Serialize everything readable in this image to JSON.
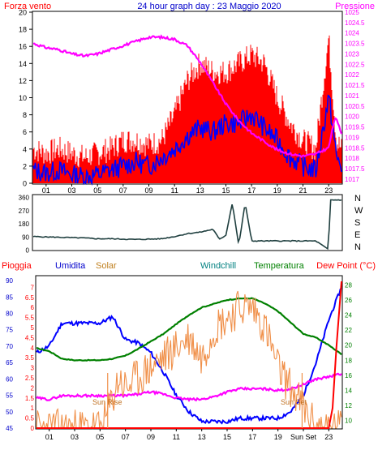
{
  "header": {
    "left_label": "Forza vento",
    "title": "24 hour graph day : 23 Maggio 2020",
    "right_label": "Pressione"
  },
  "colors": {
    "wind_gust": "#ff0000",
    "wind_avg": "#0000ff",
    "pressure": "#ff00ff",
    "direction": "#1f3f3f",
    "axis_blue": "#0000cc",
    "humidity": "#0000ff",
    "solar": "#f0904a",
    "temperature": "#008000",
    "dewpoint": "#ff0000",
    "rain": "#ff0000",
    "windchill": "#008080"
  },
  "chart_data": [
    {
      "type": "line",
      "title": "24 hour graph day : 23 Maggio 2020",
      "x_ticks": [
        "01",
        "03",
        "05",
        "07",
        "09",
        "11",
        "13",
        "15",
        "17",
        "19",
        "21",
        "23"
      ],
      "xlim": [
        0,
        24
      ],
      "y_left_label": "Forza vento",
      "y_left_ticks": [
        0,
        2,
        4,
        6,
        8,
        10,
        12,
        14,
        16,
        18,
        20
      ],
      "ylim_left": [
        0,
        20
      ],
      "y_right_label": "Pressione",
      "y_right_ticks": [
        "1017",
        "1017.5",
        "1018",
        "1018.5",
        "1019",
        "1019.5",
        "1020",
        "1020.5",
        "1021",
        "1021.5",
        "1022",
        "1022.5",
        "1023",
        "1023.5",
        "1024",
        "1024.5",
        "1025"
      ],
      "ylim_right": [
        1016.8,
        1025
      ],
      "series": [
        {
          "name": "Forza vento",
          "axis": "left",
          "style": "bars",
          "x": [
            0,
            1,
            2,
            3,
            4,
            5,
            6,
            7,
            8,
            9,
            10,
            11,
            12,
            13,
            14,
            15,
            16,
            17,
            18,
            19,
            20,
            21,
            22,
            23,
            23.3,
            23.6,
            24
          ],
          "values": [
            4,
            3.5,
            4,
            3.5,
            3,
            3.5,
            4,
            5,
            5,
            4.5,
            5,
            8,
            12,
            14,
            13,
            13,
            14,
            15,
            14,
            10,
            7,
            5,
            4,
            17,
            11,
            5,
            4
          ]
        },
        {
          "name": "avg",
          "axis": "left",
          "style": "line",
          "x": [
            0,
            1,
            2,
            3,
            4,
            5,
            6,
            7,
            8,
            9,
            10,
            11,
            12,
            13,
            14,
            15,
            16,
            17,
            18,
            19,
            20,
            21,
            22,
            23,
            23.3,
            23.6,
            24
          ],
          "values": [
            1.5,
            1.2,
            1.5,
            1,
            0.8,
            1,
            1.5,
            2,
            2.5,
            2,
            3,
            4,
            5.5,
            6.5,
            6,
            7,
            7,
            8,
            6.5,
            5,
            3,
            2,
            1.5,
            10,
            7,
            3,
            2
          ]
        },
        {
          "name": "Pressione",
          "axis": "right",
          "style": "line",
          "x": [
            0,
            1,
            2,
            3,
            4,
            5,
            6,
            7,
            8,
            9,
            10,
            11,
            12,
            13,
            14,
            15,
            16,
            17,
            18,
            19,
            20,
            21,
            22,
            23,
            23.5,
            24
          ],
          "values": [
            1023.5,
            1023.3,
            1023.2,
            1023.0,
            1022.9,
            1023.0,
            1023.2,
            1023.4,
            1023.6,
            1023.8,
            1023.8,
            1023.7,
            1023.4,
            1022.6,
            1021.6,
            1020.6,
            1019.8,
            1019.2,
            1018.8,
            1018.4,
            1018.2,
            1018.1,
            1018.2,
            1018.5,
            1020.0,
            1019.2
          ]
        }
      ]
    },
    {
      "type": "line",
      "title": "",
      "x_ticks": [
        "01",
        "03",
        "05",
        "07",
        "09",
        "11",
        "13",
        "15",
        "17",
        "19",
        "21",
        "23"
      ],
      "xlim": [
        0,
        24
      ],
      "y_left_ticks": [
        0,
        90,
        180,
        270,
        360
      ],
      "ylim": [
        0,
        360
      ],
      "y_right_ticks": [
        "N",
        "W",
        "S",
        "E",
        "N"
      ],
      "series": [
        {
          "name": "direction",
          "x": [
            0,
            2,
            4,
            5,
            6,
            8,
            10,
            11,
            12,
            13,
            14,
            14.5,
            15,
            15.5,
            16,
            16.5,
            17,
            18,
            19,
            20,
            21,
            22,
            23,
            23.1,
            24
          ],
          "values": [
            90,
            85,
            80,
            75,
            75,
            70,
            75,
            90,
            110,
            120,
            140,
            70,
            100,
            320,
            30,
            320,
            60,
            60,
            60,
            60,
            60,
            60,
            0,
            340,
            340
          ]
        }
      ]
    },
    {
      "type": "line",
      "title": "",
      "legend": [
        "Pioggia",
        "Umidita",
        "Solar",
        "Windchill",
        "Temperatura",
        "Dew Point (°C)"
      ],
      "x_ticks": [
        "01",
        "03",
        "05",
        "07",
        "09",
        "11",
        "13",
        "15",
        "17",
        "19",
        "Sun Set",
        "23"
      ],
      "xlim": [
        0,
        24
      ],
      "y_rain_ticks": [
        0,
        0.5,
        1,
        1.5,
        2,
        2.5,
        3,
        3.5,
        4,
        4.5,
        5,
        5.5,
        6,
        6.5,
        7
      ],
      "ylim_rain": [
        0,
        7.5
      ],
      "y_humidity_ticks": [
        45,
        50,
        55,
        60,
        65,
        70,
        75,
        80,
        85,
        90
      ],
      "ylim_humidity": [
        45,
        91
      ],
      "y_temp_ticks": [
        10,
        12,
        14,
        16,
        18,
        20,
        22,
        24,
        26,
        28
      ],
      "ylim_temp": [
        9,
        29
      ],
      "annotations": [
        "Sun Rise",
        "Sun Set"
      ],
      "series": [
        {
          "name": "Umidita",
          "axis": "humidity",
          "x": [
            0,
            1,
            2,
            3,
            4,
            5,
            6,
            7,
            8,
            9,
            10,
            11,
            12,
            13,
            14,
            15,
            16,
            17,
            18,
            19,
            20,
            21,
            22,
            23,
            24
          ],
          "values": [
            68,
            70,
            77,
            77,
            77,
            77,
            79,
            72,
            71,
            68,
            62,
            55,
            50,
            47,
            47,
            47,
            48,
            48,
            48,
            48,
            50,
            55,
            65,
            78,
            88
          ]
        },
        {
          "name": "Temperatura",
          "axis": "temp",
          "x": [
            0,
            1,
            2,
            3,
            4,
            5,
            6,
            7,
            8,
            9,
            10,
            11,
            12,
            13,
            14,
            15,
            16,
            17,
            18,
            19,
            20,
            21,
            22,
            23,
            24
          ],
          "values": [
            19.6,
            19.2,
            18.2,
            18,
            18,
            18,
            18.2,
            18.6,
            19.5,
            20.5,
            21.5,
            22.8,
            24,
            25,
            25.5,
            26,
            26.2,
            26.2,
            25.5,
            24.5,
            23,
            21.5,
            21,
            20,
            18.8
          ]
        },
        {
          "name": "Dew Point (°C)",
          "axis": "temp",
          "x": [
            0,
            1,
            2,
            3,
            4,
            5,
            6,
            7,
            8,
            9,
            10,
            11,
            12,
            13,
            14,
            15,
            16,
            17,
            18,
            19,
            20,
            21,
            22,
            23,
            24
          ],
          "values": [
            13,
            12.8,
            13.3,
            13.3,
            13.3,
            13.3,
            13.3,
            13.3,
            13.5,
            13.8,
            13.5,
            13,
            12.8,
            12.8,
            13.2,
            13.8,
            14.2,
            14.2,
            14.2,
            14,
            14.2,
            14.8,
            15.5,
            15.8,
            16.2
          ]
        },
        {
          "name": "Solar",
          "axis": "rain",
          "x": [
            0,
            5,
            5.5,
            6,
            6.5,
            7,
            8,
            9,
            10,
            11,
            12,
            13,
            14,
            15,
            16,
            17,
            18,
            19,
            20,
            21,
            22,
            24
          ],
          "values": [
            0,
            0,
            0.5,
            1.5,
            2.5,
            2,
            2.5,
            3,
            3.5,
            4,
            4.5,
            3.5,
            5,
            5.5,
            6,
            6,
            5,
            3,
            2,
            1,
            0,
            0
          ]
        },
        {
          "name": "Pioggia",
          "axis": "rain",
          "x": [
            0,
            22,
            23,
            23.3,
            23.6,
            24
          ],
          "values": [
            0,
            0,
            0,
            1,
            4,
            7.3
          ]
        }
      ]
    }
  ]
}
